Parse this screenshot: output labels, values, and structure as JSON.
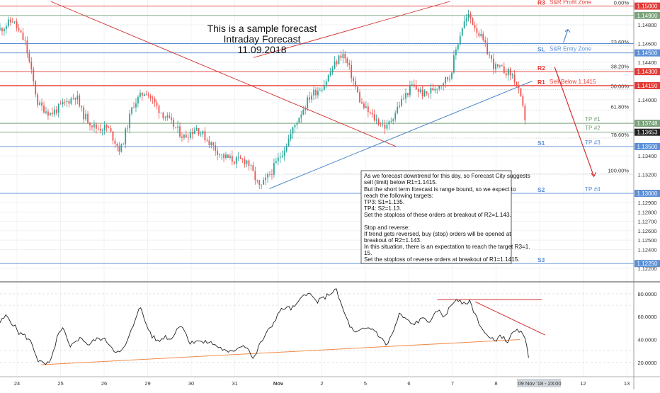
{
  "title_lines": [
    "This is a sample forecast",
    "Intraday Forecast",
    "11.09.2018"
  ],
  "colors": {
    "bull": "#26a69a",
    "bear": "#ef5350",
    "red_level": "#e53935",
    "blue_level": "#5b8fd8",
    "green_level": "#7aa27a",
    "trend_blue": "#4f86c6",
    "trend_red": "#d32f2f",
    "rsi_line": "#222222",
    "rsi_trend": "#f08c4a",
    "fib": "#999999"
  },
  "price_axis": {
    "ticks": [
      "1.15000",
      "1.14900",
      "1.14800",
      "1.14600",
      "1.14500",
      "1.14400",
      "1.14300",
      "1.14150",
      "1.14000",
      "1.13748",
      "1.13653",
      "1.13500",
      "1.13400",
      "1.13200",
      "1.13000",
      "1.12900",
      "1.12800",
      "1.12700",
      "1.12600",
      "1.12500",
      "1.12400",
      "1.12250",
      "1.12200"
    ],
    "highlighted": [
      {
        "label": "1.15000",
        "style": "red"
      },
      {
        "label": "1.14900",
        "style": "green"
      },
      {
        "label": "1.14500",
        "style": "blue"
      },
      {
        "label": "1.14300",
        "style": "red"
      },
      {
        "label": "1.14150",
        "style": "red"
      },
      {
        "label": "1.13748",
        "style": "green"
      },
      {
        "label": "1.13653",
        "style": "dark"
      },
      {
        "label": "1.13500",
        "style": "blue"
      },
      {
        "label": "1.13000",
        "style": "blue"
      },
      {
        "label": "1.12250",
        "style": "blue"
      }
    ]
  },
  "levels": [
    {
      "name": "R3",
      "price": 1.15,
      "color": "red",
      "label": "R3",
      "note": "S&R Profit Zone"
    },
    {
      "name": "profit",
      "price": 1.149,
      "color": "green",
      "label": "",
      "note": ""
    },
    {
      "name": "entry",
      "price": 1.146,
      "color": "blue",
      "label": "",
      "note": ""
    },
    {
      "name": "SL",
      "price": 1.145,
      "color": "blue",
      "label": "SL",
      "note": "S&R Entry Zone"
    },
    {
      "name": "R2",
      "price": 1.143,
      "color": "red",
      "label": "R2",
      "note": ""
    },
    {
      "name": "R1",
      "price": 1.1415,
      "color": "red",
      "label": "R1",
      "note": "Sell Below 1.1415"
    },
    {
      "name": "TP1",
      "price": 1.13748,
      "color": "green",
      "label": "",
      "note": "TP #1"
    },
    {
      "name": "TP2",
      "price": 1.13653,
      "color": "green",
      "label": "",
      "note": "TP #2"
    },
    {
      "name": "S1",
      "price": 1.135,
      "color": "blue",
      "label": "S1",
      "note": "TP #3"
    },
    {
      "name": "S2",
      "price": 1.13,
      "color": "blue",
      "label": "S2",
      "note": "TP #4"
    },
    {
      "name": "S3",
      "price": 1.1225,
      "color": "blue",
      "label": "S3",
      "note": ""
    }
  ],
  "fib_labels": [
    "0.00%",
    "23.60%",
    "38.20%",
    "50.00%",
    "61.80%",
    "78.60%",
    "100.00%"
  ],
  "rsi_axis": [
    "80.0000",
    "60.0000",
    "40.0000",
    "20.0000"
  ],
  "time_axis": [
    "24",
    "25",
    "26",
    "29",
    "30",
    "31",
    "Nov",
    "2",
    "5",
    "6",
    "7",
    "8",
    "09 Nov '18 - 23:00",
    "12",
    "13"
  ],
  "note_lines": [
    "As we forecast downtrend for this day, so Forecast City suggests",
    "sell (limit) below R1=1.1415.",
    "But the short term forecast is range bound, so we expect to",
    "reach the following targets:",
    "TP3: S1=1.135.",
    "TP4: S2=1.13.",
    "Set the stoploss of these orders at breakout of R2=1.143.",
    "",
    "Stop and reverse:",
    "If trend gets reversed, buy (stop) orders will be opened at",
    "breakout of R2=1.143.",
    "In this situation, there is an expectation to reach the target R3=1.",
    "15.",
    "Set the stoploss of reverse orders at breakout of R1=1.1415."
  ],
  "chart_data": [
    {
      "type": "candlestick",
      "title": "",
      "price_range": [
        1.121,
        1.1505
      ],
      "x_range": [
        0,
        100
      ],
      "path": [
        [
          0,
          1.1475
        ],
        [
          2,
          1.1485
        ],
        [
          4,
          1.146
        ],
        [
          6,
          1.1395
        ],
        [
          8,
          1.1385
        ],
        [
          10,
          1.1395
        ],
        [
          12,
          1.1405
        ],
        [
          13,
          1.1385
        ],
        [
          15,
          1.137
        ],
        [
          17,
          1.137
        ],
        [
          19,
          1.1345
        ],
        [
          21,
          1.1395
        ],
        [
          23,
          1.141
        ],
        [
          25,
          1.139
        ],
        [
          27,
          1.1375
        ],
        [
          29,
          1.136
        ],
        [
          31,
          1.137
        ],
        [
          33,
          1.1355
        ],
        [
          35,
          1.134
        ],
        [
          37,
          1.1335
        ],
        [
          39,
          1.1335
        ],
        [
          40,
          1.132
        ],
        [
          41,
          1.1305
        ],
        [
          43,
          1.1325
        ],
        [
          45,
          1.135
        ],
        [
          47,
          1.138
        ],
        [
          49,
          1.1405
        ],
        [
          51,
          1.1415
        ],
        [
          53,
          1.144
        ],
        [
          54,
          1.145
        ],
        [
          55,
          1.1435
        ],
        [
          57,
          1.1395
        ],
        [
          59,
          1.138
        ],
        [
          61,
          1.137
        ],
        [
          63,
          1.1395
        ],
        [
          65,
          1.1415
        ],
        [
          67,
          1.1405
        ],
        [
          69,
          1.1415
        ],
        [
          71,
          1.1425
        ],
        [
          72,
          1.1455
        ],
        [
          73,
          1.148
        ],
        [
          74,
          1.149
        ],
        [
          76,
          1.1465
        ],
        [
          78,
          1.1435
        ],
        [
          80,
          1.143
        ],
        [
          81,
          1.1425
        ],
        [
          82,
          1.1405
        ],
        [
          83,
          1.1375
        ]
      ],
      "seed": 11
    },
    {
      "type": "line",
      "title": "",
      "name": "",
      "y_range": [
        10,
        88
      ],
      "x_range": [
        0,
        100
      ],
      "path": [
        [
          0,
          55
        ],
        [
          1,
          61
        ],
        [
          2,
          54
        ],
        [
          3,
          46
        ],
        [
          4,
          43
        ],
        [
          5,
          37
        ],
        [
          6,
          22
        ],
        [
          7,
          18
        ],
        [
          8,
          20
        ],
        [
          9,
          42
        ],
        [
          10,
          50
        ],
        [
          11,
          32
        ],
        [
          12,
          40
        ],
        [
          13,
          41
        ],
        [
          14,
          35
        ],
        [
          15,
          40
        ],
        [
          16,
          41
        ],
        [
          17,
          38
        ],
        [
          18,
          31
        ],
        [
          19,
          28
        ],
        [
          20,
          37
        ],
        [
          21,
          52
        ],
        [
          22,
          70
        ],
        [
          23,
          54
        ],
        [
          24,
          43
        ],
        [
          25,
          38
        ],
        [
          26,
          43
        ],
        [
          27,
          40
        ],
        [
          28,
          51
        ],
        [
          29,
          51
        ],
        [
          30,
          36
        ],
        [
          31,
          40
        ],
        [
          32,
          37
        ],
        [
          33,
          38
        ],
        [
          34,
          35
        ],
        [
          35,
          32
        ],
        [
          36,
          28
        ],
        [
          37,
          31
        ],
        [
          38,
          35
        ],
        [
          39,
          34
        ],
        [
          40,
          22
        ],
        [
          41,
          36
        ],
        [
          42,
          45
        ],
        [
          43,
          53
        ],
        [
          44,
          64
        ],
        [
          45,
          68
        ],
        [
          46,
          67
        ],
        [
          47,
          71
        ],
        [
          48,
          81
        ],
        [
          49,
          79
        ],
        [
          50,
          73
        ],
        [
          51,
          76
        ],
        [
          52,
          80
        ],
        [
          53,
          84
        ],
        [
          54,
          68
        ],
        [
          55,
          54
        ],
        [
          56,
          45
        ],
        [
          57,
          48
        ],
        [
          58,
          50
        ],
        [
          59,
          49
        ],
        [
          60,
          42
        ],
        [
          61,
          35
        ],
        [
          62,
          46
        ],
        [
          63,
          62
        ],
        [
          64,
          58
        ],
        [
          65,
          53
        ],
        [
          66,
          56
        ],
        [
          67,
          59
        ],
        [
          68,
          55
        ],
        [
          69,
          66
        ],
        [
          70,
          60
        ],
        [
          71,
          68
        ],
        [
          72,
          76
        ],
        [
          73,
          70
        ],
        [
          74,
          74
        ],
        [
          75,
          62
        ],
        [
          76,
          50
        ],
        [
          77,
          42
        ],
        [
          78,
          39
        ],
        [
          79,
          44
        ],
        [
          80,
          38
        ],
        [
          81,
          46
        ],
        [
          82,
          48
        ],
        [
          83,
          38
        ],
        [
          83.6,
          20
        ]
      ],
      "seed": 5
    }
  ]
}
